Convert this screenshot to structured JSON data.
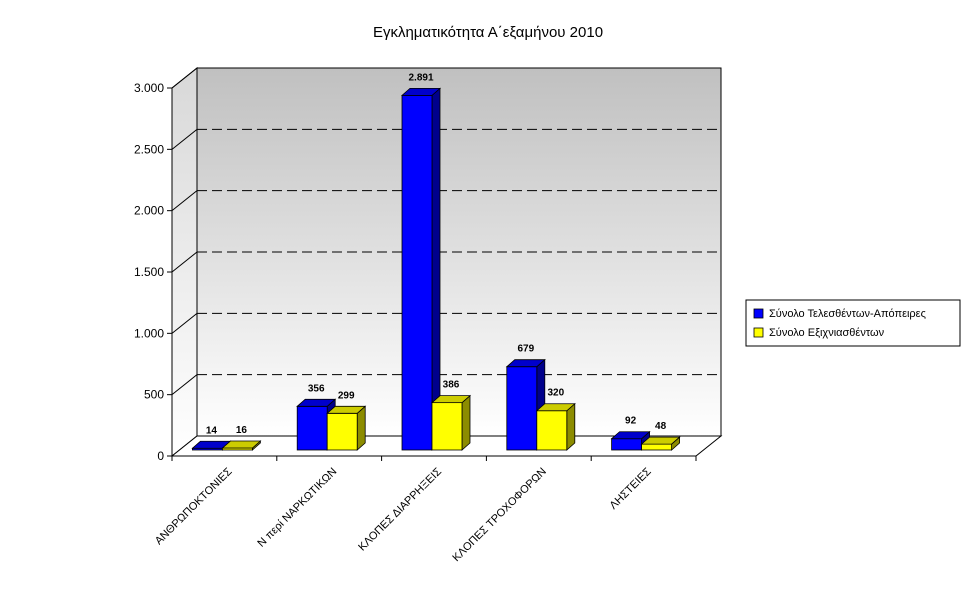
{
  "chart_data": {
    "type": "bar",
    "title": "Εγκληματικότητα Α΄εξαμήνου 2010",
    "categories": [
      "ΑΝΘΡΩΠΟΚΤΟΝΙΕΣ",
      "Ν περί ΝΑΡΚΩΤΙΚΩΝ",
      "ΚΛΟΠΕΣ ΔΙΑΡΡΗΞΕΙΣ",
      "ΚΛΟΠΕΣ ΤΡΟΧΟΦΟΡΩΝ",
      "ΛΗΣΤΕΙΕΣ"
    ],
    "series": [
      {
        "name": "Σύνολο Τελεσθέντων-Απόπειρες",
        "values": [
          14,
          356,
          2891,
          679,
          92
        ],
        "labels": [
          "14",
          "356",
          "2.891",
          "679",
          "92"
        ],
        "color": "#0000ff"
      },
      {
        "name": "Σύνολο Εξιχνιασθέντων",
        "values": [
          16,
          299,
          386,
          320,
          48
        ],
        "labels": [
          "16",
          "299",
          "386",
          "320",
          "48"
        ],
        "color": "#ffff00"
      }
    ],
    "yticks": [
      0,
      500,
      1000,
      1500,
      2000,
      2500,
      3000
    ],
    "ytick_labels": [
      "0",
      "500",
      "1.000",
      "1.500",
      "2.000",
      "2.500",
      "3.000"
    ],
    "ylim": [
      0,
      3000
    ],
    "grid": "dashed horizontal",
    "legend_position": "right",
    "xlabel": "",
    "ylabel": ""
  }
}
